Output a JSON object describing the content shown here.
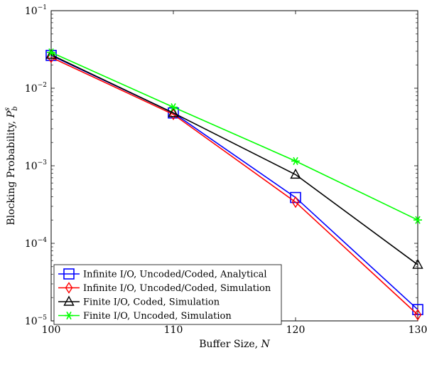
{
  "chart_data": {
    "type": "line",
    "xlabel_text": "Buffer Size, ",
    "xlabel_var": "N",
    "ylabel_text": "Blocking Probability, ",
    "ylabel_var": "P",
    "ylabel_var_sub": "b",
    "ylabel_var_sup": "s",
    "y_scale": "log",
    "xlim": [
      100,
      130
    ],
    "ylim": [
      1e-05,
      0.1
    ],
    "x_ticks": [
      100,
      110,
      120,
      130
    ],
    "x_tick_labels": [
      "100",
      "110",
      "120",
      "130"
    ],
    "y_ticks": [
      1e-05,
      0.0001,
      0.001,
      0.01,
      0.1
    ],
    "y_tick_labels": [
      {
        "base": "10",
        "exp": "−5"
      },
      {
        "base": "10",
        "exp": "−4"
      },
      {
        "base": "10",
        "exp": "−3"
      },
      {
        "base": "10",
        "exp": "−2"
      },
      {
        "base": "10",
        "exp": "−1"
      }
    ],
    "grid": false,
    "legend_position": "bottom-left",
    "x": [
      100,
      110,
      120,
      130
    ],
    "series": [
      {
        "name": "Infinite I/O, Uncoded/Coded, Analytical",
        "color": "#0000ff",
        "marker": "square",
        "values": [
          0.0265,
          0.0048,
          0.00039,
          1.4e-05
        ]
      },
      {
        "name": "Infinite I/O, Uncoded/Coded, Simulation",
        "color": "#ff0000",
        "marker": "diamond",
        "values": [
          0.025,
          0.0046,
          0.00034,
          1.2e-05
        ]
      },
      {
        "name": "Finite I/O, Coded, Simulation",
        "color": "#000000",
        "marker": "triangle",
        "values": [
          0.027,
          0.0048,
          0.00077,
          5.3e-05
        ]
      },
      {
        "name": "Finite I/O, Uncoded, Simulation",
        "color": "#00ff00",
        "marker": "star",
        "values": [
          0.029,
          0.0057,
          0.00115,
          0.0002
        ]
      }
    ]
  }
}
